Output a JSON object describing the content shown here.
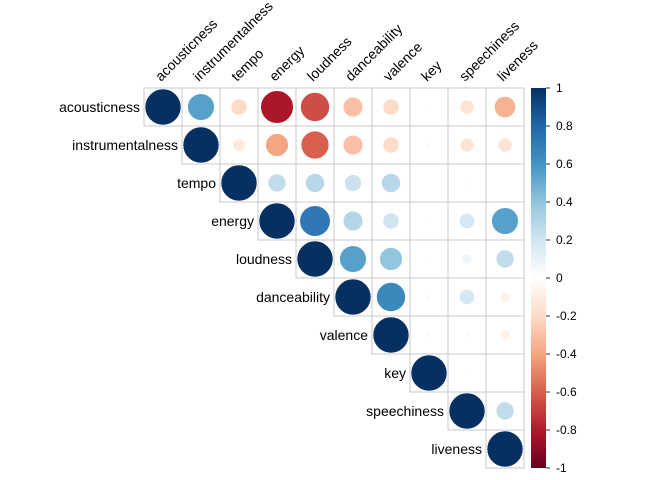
{
  "chart_data": {
    "type": "heatmap",
    "subtype": "correlation-upper-triangle-circles",
    "variables": [
      "acousticness",
      "instrumentalness",
      "tempo",
      "energy",
      "loudness",
      "danceability",
      "valence",
      "key",
      "speechiness",
      "liveness"
    ],
    "matrix": [
      [
        1,
        0.55,
        -0.2,
        -0.82,
        -0.65,
        -0.3,
        -0.2,
        0.02,
        -0.15,
        -0.35
      ],
      [
        0.55,
        1,
        -0.12,
        -0.4,
        -0.6,
        -0.3,
        -0.2,
        0.03,
        -0.15,
        -0.15
      ],
      [
        -0.2,
        -0.12,
        1,
        0.25,
        0.28,
        0.22,
        0.28,
        0.0,
        0.02,
        0.0
      ],
      [
        -0.82,
        -0.4,
        0.25,
        1,
        0.72,
        0.3,
        0.2,
        0.02,
        0.18,
        0.55
      ],
      [
        -0.65,
        -0.6,
        0.28,
        0.72,
        1,
        0.55,
        0.4,
        0.02,
        0.08,
        0.25
      ],
      [
        -0.3,
        -0.3,
        0.22,
        0.3,
        0.55,
        1,
        0.65,
        0.03,
        0.18,
        -0.08
      ],
      [
        -0.2,
        -0.2,
        0.28,
        0.2,
        0.4,
        0.65,
        1,
        0.03,
        0.03,
        -0.08
      ],
      [
        0.02,
        0.03,
        0.0,
        0.02,
        0.02,
        0.03,
        0.03,
        1,
        0.01,
        0.0
      ],
      [
        -0.15,
        -0.15,
        0.02,
        0.18,
        0.08,
        0.18,
        0.03,
        0.01,
        1,
        0.25
      ],
      [
        -0.35,
        -0.15,
        0.0,
        0.55,
        0.25,
        -0.08,
        -0.08,
        0.0,
        0.25,
        1
      ]
    ],
    "color_scale": {
      "domain": [
        -1,
        1
      ],
      "ticks": [
        1,
        0.8,
        0.6,
        0.4,
        0.2,
        0,
        -0.2,
        -0.4,
        -0.6,
        -0.8,
        -1
      ],
      "tick_labels": [
        "1",
        "0.8",
        "0.6",
        "0.4",
        "0.2",
        "0",
        "-0.2",
        "-0.4",
        "-0.6",
        "-0.8",
        "-1"
      ],
      "colors": [
        "#67001F",
        "#B2182B",
        "#D6604D",
        "#F4A582",
        "#FDDBC7",
        "#FFFFFF",
        "#D1E5F0",
        "#92C5DE",
        "#4393C3",
        "#2166AC",
        "#053061"
      ]
    },
    "legend_position": "right",
    "grid": true,
    "title": "",
    "xlabel": "",
    "ylabel": ""
  }
}
